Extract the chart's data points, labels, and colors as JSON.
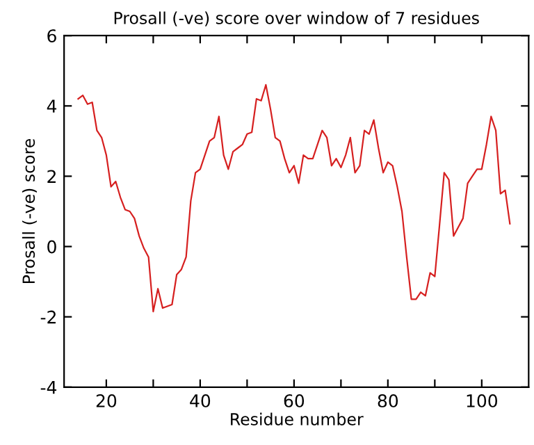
{
  "chart_data": {
    "type": "line",
    "title": "Prosall (-ve) score over window of 7 residues",
    "xlabel": "Residue number",
    "ylabel": "Prosall (-ve) score",
    "x": [
      14,
      15,
      16,
      17,
      18,
      19,
      20,
      21,
      22,
      23,
      24,
      25,
      26,
      27,
      28,
      29,
      30,
      31,
      32,
      33,
      34,
      35,
      36,
      37,
      38,
      39,
      40,
      41,
      42,
      43,
      44,
      45,
      46,
      47,
      48,
      49,
      50,
      51,
      52,
      53,
      54,
      55,
      56,
      57,
      58,
      59,
      60,
      61,
      62,
      63,
      64,
      65,
      66,
      67,
      68,
      69,
      70,
      71,
      72,
      73,
      74,
      75,
      76,
      77,
      78,
      79,
      80,
      81,
      82,
      83,
      84,
      85,
      86,
      87,
      88,
      89,
      90,
      91,
      92,
      93,
      94,
      95,
      96,
      97,
      98,
      99,
      100,
      101,
      102,
      103,
      104,
      105,
      106
    ],
    "series": [
      {
        "color": "#d62020",
        "values": [
          4.2,
          4.3,
          4.05,
          4.1,
          3.3,
          3.1,
          2.6,
          1.7,
          1.85,
          1.4,
          1.05,
          1.0,
          0.8,
          0.3,
          -0.05,
          -0.3,
          -1.85,
          -1.2,
          -1.75,
          -1.7,
          -1.65,
          -0.8,
          -0.65,
          -0.3,
          1.3,
          2.1,
          2.2,
          2.6,
          3.0,
          3.1,
          3.7,
          2.6,
          2.2,
          2.7,
          2.8,
          2.9,
          3.2,
          3.25,
          4.2,
          4.15,
          4.6,
          3.9,
          3.1,
          3.0,
          2.5,
          2.1,
          2.3,
          1.8,
          2.6,
          2.5,
          2.5,
          2.9,
          3.3,
          3.1,
          2.3,
          2.5,
          2.25,
          2.6,
          3.1,
          2.1,
          2.3,
          3.3,
          3.2,
          3.6,
          2.8,
          2.1,
          2.4,
          2.3,
          1.7,
          1.0,
          -0.3,
          -1.5,
          -1.5,
          -1.3,
          -1.4,
          -0.75,
          -0.85,
          0.6,
          2.1,
          1.9,
          0.3,
          0.55,
          0.8,
          1.8,
          2.0,
          2.2,
          2.2,
          2.9,
          3.7,
          3.3,
          1.5,
          1.6,
          0.65
        ]
      }
    ],
    "xlim": [
      11,
      110
    ],
    "ylim": [
      -4,
      6
    ],
    "xticks": [
      20,
      {
        "value": 30,
        "label": null
      },
      40,
      {
        "value": 50,
        "label": null
      },
      60,
      {
        "value": 70,
        "label": null
      },
      80,
      {
        "value": 90,
        "label": null
      },
      100
    ],
    "yticks": [
      -4,
      -2,
      0,
      2,
      4,
      6
    ],
    "grid": false,
    "legend": false,
    "marker": "none",
    "line_style": "solid"
  }
}
